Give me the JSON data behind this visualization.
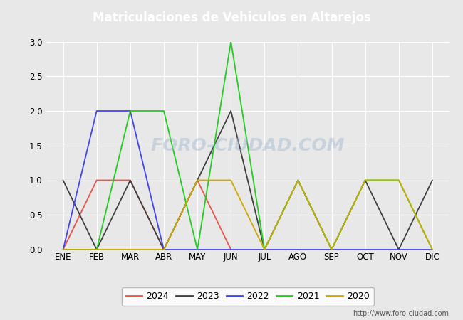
{
  "title": "Matriculaciones de Vehiculos en Altarejos",
  "title_color": "#ffffff",
  "title_bg_color": "#4472c4",
  "months": [
    "ENE",
    "FEB",
    "MAR",
    "ABR",
    "MAY",
    "JUN",
    "JUL",
    "AGO",
    "SEP",
    "OCT",
    "NOV",
    "DIC"
  ],
  "series": {
    "2024": {
      "values": [
        0,
        1,
        1,
        0,
        1,
        0,
        null,
        null,
        null,
        null,
        null,
        null
      ],
      "color": "#e8534a",
      "label": "2024"
    },
    "2023": {
      "values": [
        1,
        0,
        1,
        0,
        1,
        2,
        0,
        1,
        0,
        1,
        0,
        1
      ],
      "color": "#404040",
      "label": "2023"
    },
    "2022": {
      "values": [
        0,
        2,
        2,
        0,
        0,
        0,
        0,
        0,
        0,
        0,
        0,
        0
      ],
      "color": "#4444ee",
      "label": "2022"
    },
    "2021": {
      "values": [
        0,
        0,
        2,
        2,
        0,
        3,
        0,
        1,
        0,
        1,
        1,
        0
      ],
      "color": "#22cc22",
      "label": "2021"
    },
    "2020": {
      "values": [
        0,
        0,
        0,
        0,
        1,
        1,
        0,
        1,
        0,
        1,
        1,
        0
      ],
      "color": "#ccaa00",
      "label": "2020"
    }
  },
  "ylim": [
    0,
    3.0
  ],
  "yticks": [
    0.0,
    0.5,
    1.0,
    1.5,
    2.0,
    2.5,
    3.0
  ],
  "plot_bg_color": "#e8e8e8",
  "fig_bg_color": "#e8e8e8",
  "grid_color": "#ffffff",
  "watermark": "FORO-CIUDAD.COM",
  "url": "http://www.foro-ciudad.com",
  "legend_order": [
    "2024",
    "2023",
    "2022",
    "2021",
    "2020"
  ]
}
